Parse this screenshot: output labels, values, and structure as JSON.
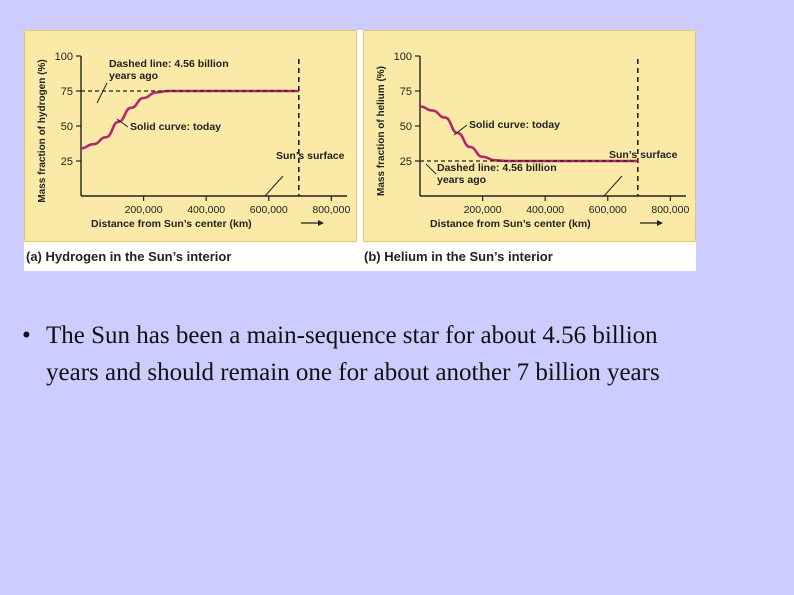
{
  "colors": {
    "slide_background": "#ccccff",
    "panel_background": "#fbeaa7",
    "curve": "#b5286b",
    "axis": "#222222"
  },
  "chart_data": [
    {
      "type": "line",
      "panel": "a",
      "caption_label": "(a)",
      "caption": "Hydrogen in the Sun’s interior",
      "ylabel": "Mass fraction of hydrogen (%)",
      "xlabel": "Distance from Sun’s center (km)",
      "xlim": [
        0,
        850000
      ],
      "ylim": [
        0,
        100
      ],
      "x_ticks": [
        200000,
        400000,
        600000,
        800000
      ],
      "x_tick_labels": [
        "200,000",
        "400,000",
        "600,000",
        "800,000"
      ],
      "y_ticks": [
        25,
        50,
        75,
        100
      ],
      "y_tick_labels": [
        "25",
        "50",
        "75",
        "100"
      ],
      "grid": false,
      "series": [
        {
          "style": "solid",
          "x": [
            0,
            40000,
            80000,
            120000,
            160000,
            200000,
            240000,
            280000,
            320000,
            400000,
            500000,
            600000,
            696000
          ],
          "y": [
            34,
            37,
            42,
            53,
            63,
            70,
            74,
            75,
            75,
            75,
            75,
            75,
            75
          ]
        },
        {
          "style": "dashed",
          "x": [
            0,
            696000
          ],
          "y": [
            75,
            75
          ]
        }
      ],
      "surface_x": 696000,
      "annotations": [
        {
          "text": [
            "Dashed line: 4.56 billion",
            "years ago"
          ]
        },
        {
          "text": [
            "Solid curve: today"
          ]
        },
        {
          "text": [
            "Sun’s surface"
          ]
        }
      ]
    },
    {
      "type": "line",
      "panel": "b",
      "caption_label": "(b)",
      "caption": "Helium in the Sun’s interior",
      "ylabel": "Mass fraction of helium (%)",
      "xlabel": "Distance from Sun’s center (km)",
      "xlim": [
        0,
        850000
      ],
      "ylim": [
        0,
        100
      ],
      "x_ticks": [
        200000,
        400000,
        600000,
        800000
      ],
      "x_tick_labels": [
        "200,000",
        "400,000",
        "600,000",
        "800,000"
      ],
      "y_ticks": [
        25,
        50,
        75,
        100
      ],
      "y_tick_labels": [
        "25",
        "50",
        "75",
        "100"
      ],
      "grid": false,
      "series": [
        {
          "style": "solid",
          "x": [
            0,
            40000,
            80000,
            120000,
            160000,
            200000,
            240000,
            280000,
            320000,
            400000,
            500000,
            600000,
            696000
          ],
          "y": [
            64,
            61,
            56,
            45,
            35,
            28,
            25.5,
            25,
            25,
            25,
            25,
            25,
            25
          ]
        },
        {
          "style": "dashed",
          "x": [
            0,
            696000
          ],
          "y": [
            25,
            25
          ]
        }
      ],
      "surface_x": 696000,
      "annotations": [
        {
          "text": [
            "Solid curve: today"
          ]
        },
        {
          "text": [
            "Dashed line: 4.56 billion",
            "years ago"
          ]
        },
        {
          "text": [
            "Sun’s surface"
          ]
        }
      ]
    }
  ],
  "bullet": {
    "mark": "•",
    "text": "The Sun has been a main-sequence star for about 4.56 billion years and should remain one for about another 7 billion years"
  }
}
